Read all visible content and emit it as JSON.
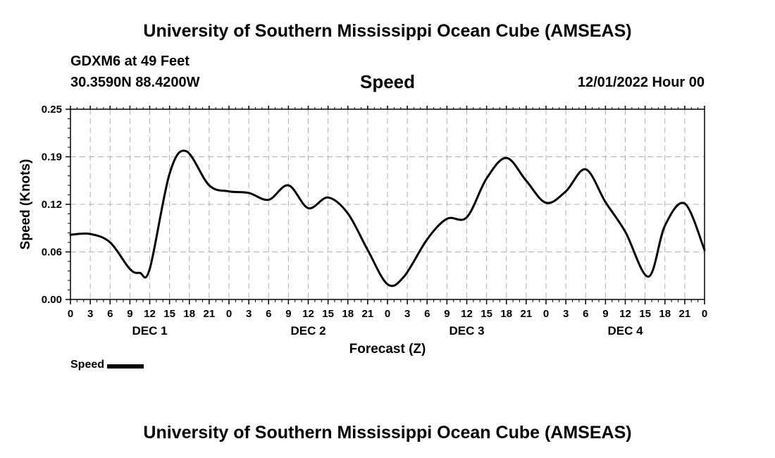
{
  "header": {
    "title": "University of Southern Mississippi Ocean Cube (AMSEAS)",
    "station": "GDXM6 at 49 Feet",
    "coords": "30.3590N  88.4200W",
    "chart_title": "Speed",
    "run_time": "12/01/2022 Hour 00"
  },
  "footer": {
    "title": "University of Southern Mississippi Ocean Cube (AMSEAS)"
  },
  "legend": {
    "label": "Speed"
  },
  "colors": {
    "line": "#000000",
    "grid": "#b0b0b0"
  },
  "chart_data": {
    "type": "line",
    "title": "Speed",
    "xlabel": "Forecast (Z)",
    "ylabel": "Speed (Knots)",
    "ylim": [
      0.0,
      0.25
    ],
    "yticks": [
      "0.00",
      "0.06",
      "0.12",
      "0.19",
      "0.25"
    ],
    "ytick_values": [
      0.0,
      0.0625,
      0.125,
      0.1875,
      0.25
    ],
    "xlim_hours": [
      0,
      96
    ],
    "xtick_labels": [
      "0",
      "3",
      "6",
      "9",
      "12",
      "15",
      "18",
      "21",
      "0",
      "3",
      "6",
      "9",
      "12",
      "15",
      "18",
      "21",
      "0",
      "3",
      "6",
      "9",
      "12",
      "15",
      "18",
      "21",
      "0",
      "3",
      "6",
      "9",
      "12",
      "15",
      "18",
      "21",
      "0"
    ],
    "day_labels": [
      {
        "label": "DEC 1",
        "center_hour": 12
      },
      {
        "label": "DEC 2",
        "center_hour": 36
      },
      {
        "label": "DEC 3",
        "center_hour": 60
      },
      {
        "label": "DEC 4",
        "center_hour": 84
      }
    ],
    "grid": true,
    "series": [
      {
        "name": "Speed",
        "x": [
          0,
          3,
          6,
          9,
          10.5,
          12,
          15,
          17.5,
          21,
          24,
          27,
          30,
          33,
          36,
          39,
          42,
          45,
          48,
          50.5,
          54,
          57,
          60,
          63,
          66,
          69,
          72,
          75,
          78,
          81,
          84,
          87.5,
          90,
          93,
          96
        ],
        "y": [
          0.085,
          0.086,
          0.075,
          0.04,
          0.035,
          0.04,
          0.165,
          0.195,
          0.15,
          0.142,
          0.14,
          0.131,
          0.15,
          0.12,
          0.134,
          0.113,
          0.065,
          0.02,
          0.03,
          0.079,
          0.106,
          0.108,
          0.159,
          0.186,
          0.156,
          0.127,
          0.142,
          0.171,
          0.128,
          0.089,
          0.03,
          0.097,
          0.126,
          0.065
        ]
      }
    ]
  }
}
